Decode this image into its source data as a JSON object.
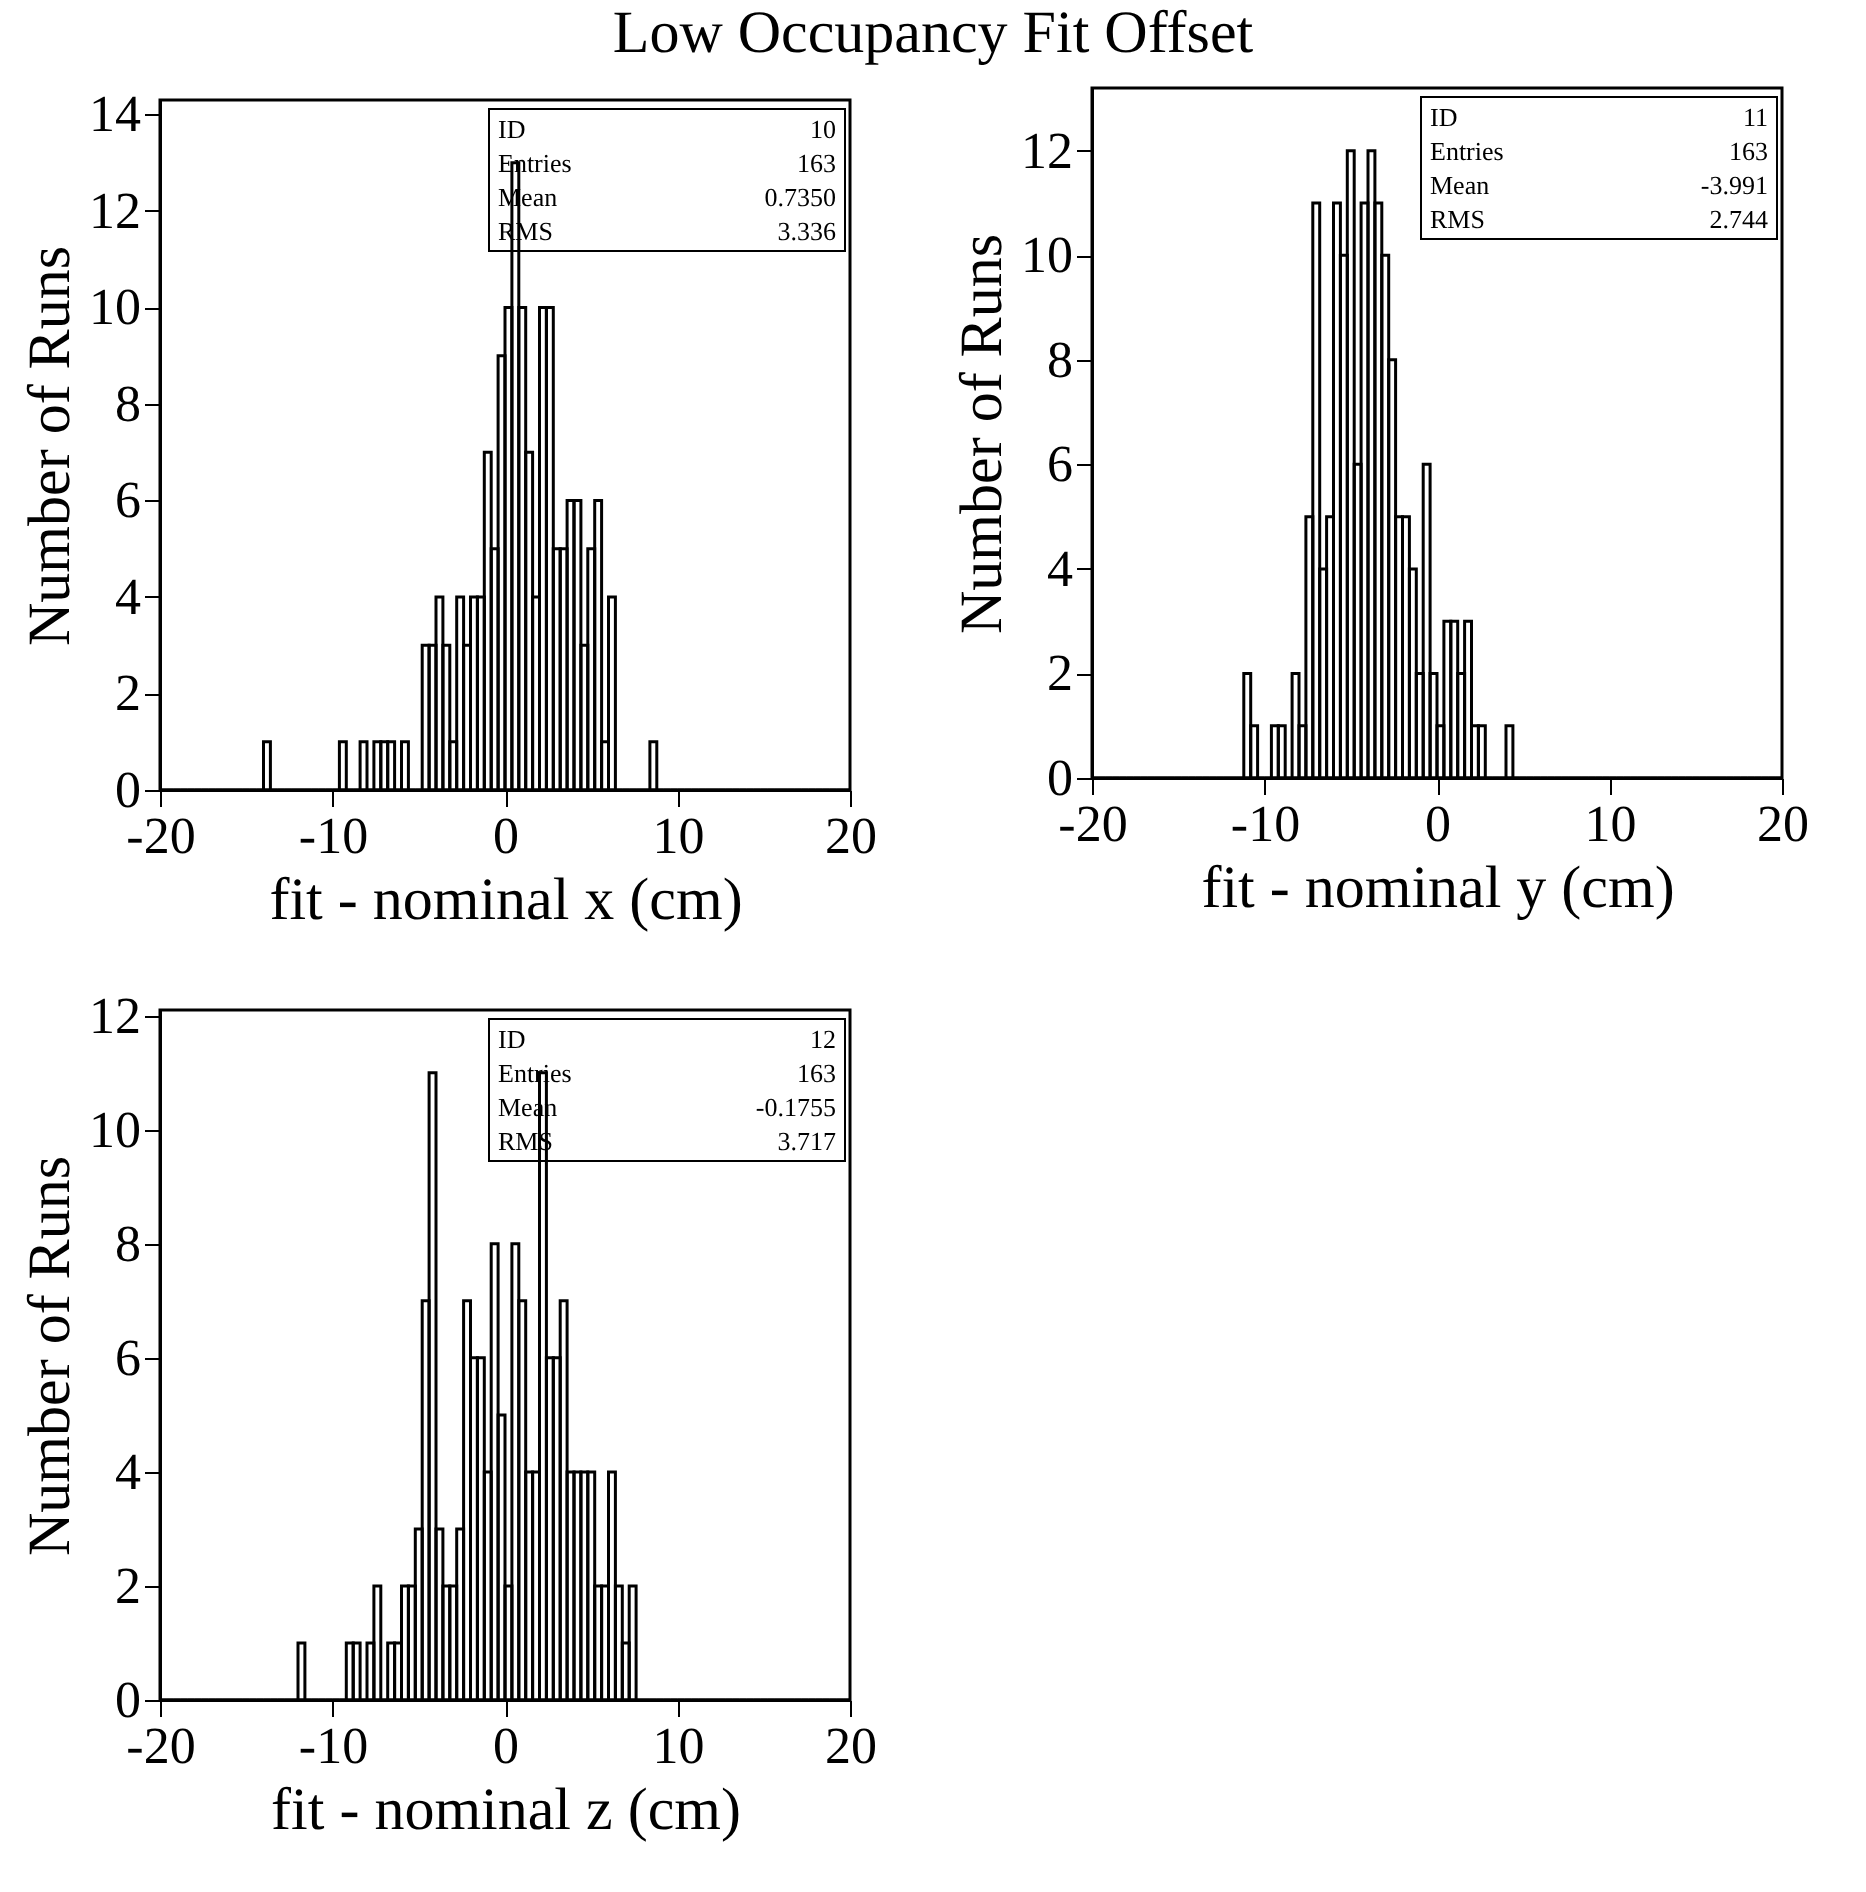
{
  "chart_data": [
    {
      "type": "histogram",
      "title": "Low Occupancy Fit Offset",
      "xlabel": "fit - nominal x (cm)",
      "ylabel": "Number of Runs",
      "color": "#000000",
      "bins": [
        -20,
        -19.6,
        -19.2,
        -18.8,
        -18.4,
        -18,
        -17.6,
        -17.2,
        -16.8,
        -16.4,
        -16,
        -15.6,
        -15.2,
        -14.8,
        -14.4,
        -14,
        -13.6,
        -13.2,
        -12.8,
        -12.4,
        -12,
        -11.6,
        -11.2,
        -10.8,
        -10.4,
        -10,
        -9.6,
        -9.2,
        -8.8,
        -8.4,
        -8,
        -7.6,
        -7.2,
        -6.8,
        -6.4,
        -6,
        -5.6,
        -5.2,
        -4.8,
        -4.4,
        -4,
        -3.6,
        -3.2,
        -2.8,
        -2.4,
        -2,
        -1.6,
        -1.2,
        -0.8,
        -0.4,
        0,
        0.4,
        0.8,
        1.2,
        1.6,
        2,
        2.4,
        2.8,
        3.2,
        3.6,
        4,
        4.4,
        4.8,
        5.2,
        5.6,
        6,
        6.4,
        6.8,
        7.2,
        7.6,
        8,
        8.4,
        8.8,
        9.2,
        9.6,
        10,
        10.4,
        10.8,
        11.2,
        11.6,
        12,
        12.4,
        12.8,
        13.2,
        13.6,
        14,
        14.4,
        14.8,
        15.2,
        15.6,
        16,
        16.4,
        16.8,
        17.2,
        17.6,
        18,
        18.4,
        18.8,
        19.2,
        19.6,
        20
      ],
      "values": [
        0,
        0,
        0,
        0,
        0,
        0,
        0,
        0,
        0,
        0,
        0,
        0,
        0,
        0,
        0,
        1,
        0,
        0,
        0,
        0,
        0,
        0,
        0,
        0,
        0,
        0,
        1,
        0,
        0,
        1,
        0,
        1,
        1,
        1,
        0,
        1,
        0,
        0,
        3,
        3,
        4,
        3,
        1,
        4,
        3,
        4,
        4,
        7,
        5,
        9,
        10,
        13,
        10,
        7,
        4,
        10,
        10,
        5,
        5,
        6,
        6,
        3,
        5,
        6,
        1,
        4,
        0,
        0,
        0,
        0,
        0,
        1,
        0,
        0,
        0,
        0,
        0,
        0,
        0,
        0,
        0,
        0,
        0,
        0,
        0,
        0,
        0,
        0,
        0,
        0,
        0,
        0,
        0,
        0,
        0,
        0,
        0,
        0,
        0,
        0
      ],
      "xlim": [
        -20,
        20
      ],
      "xticks": [
        -20,
        -10,
        0,
        10,
        20
      ],
      "ylim": [
        0,
        14.3
      ],
      "yticks": [
        0,
        2,
        4,
        6,
        8,
        10,
        12,
        14
      ],
      "annotations": [
        "ID 10",
        "Entries 163",
        "Mean 0.7350",
        "RMS 3.336"
      ]
    },
    {
      "type": "histogram",
      "xlabel": "fit - nominal y (cm)",
      "ylabel": "Number of Runs",
      "color": "#000000",
      "bins": [
        -20,
        -19.6,
        -19.2,
        -18.8,
        -18.4,
        -18,
        -17.6,
        -17.2,
        -16.8,
        -16.4,
        -16,
        -15.6,
        -15.2,
        -14.8,
        -14.4,
        -14,
        -13.6,
        -13.2,
        -12.8,
        -12.4,
        -12,
        -11.6,
        -11.2,
        -10.8,
        -10.4,
        -10,
        -9.6,
        -9.2,
        -8.8,
        -8.4,
        -8,
        -7.6,
        -7.2,
        -6.8,
        -6.4,
        -6,
        -5.6,
        -5.2,
        -4.8,
        -4.4,
        -4,
        -3.6,
        -3.2,
        -2.8,
        -2.4,
        -2,
        -1.6,
        -1.2,
        -0.8,
        -0.4,
        0,
        0.4,
        0.8,
        1.2,
        1.6,
        2,
        2.4,
        2.8,
        3.2,
        3.6,
        4,
        4.4,
        4.8,
        5.2,
        5.6,
        6,
        6.4,
        6.8,
        7.2,
        7.6,
        8,
        8.4,
        8.8,
        9.2,
        9.6,
        10,
        10.4,
        10.8,
        11.2,
        11.6,
        12,
        12.4,
        12.8,
        13.2,
        13.6,
        14,
        14.4,
        14.8,
        15.2,
        15.6,
        16,
        16.4,
        16.8,
        17.2,
        17.6,
        18,
        18.4,
        18.8,
        19.2,
        19.6,
        20
      ],
      "values": [
        0,
        0,
        0,
        0,
        0,
        0,
        0,
        0,
        0,
        0,
        0,
        0,
        0,
        0,
        0,
        0,
        0,
        0,
        0,
        0,
        0,
        0,
        2,
        1,
        0,
        0,
        1,
        1,
        0,
        2,
        1,
        5,
        11,
        4,
        5,
        11,
        10,
        12,
        6,
        11,
        12,
        11,
        10,
        8,
        5,
        5,
        4,
        2,
        6,
        2,
        1,
        3,
        3,
        2,
        3,
        1,
        1,
        0,
        0,
        0,
        1,
        0,
        0,
        0,
        0,
        0,
        0,
        0,
        0,
        0,
        0,
        0,
        0,
        0,
        0,
        0,
        0,
        0,
        0,
        0,
        0,
        0,
        0,
        0,
        0,
        0,
        0,
        0,
        0,
        0,
        0,
        0,
        0,
        0,
        0,
        0,
        0,
        0,
        0,
        0
      ],
      "xlim": [
        -20,
        20
      ],
      "xticks": [
        -20,
        -10,
        0,
        10,
        20
      ],
      "ylim": [
        0,
        13.2
      ],
      "yticks": [
        0,
        2,
        4,
        6,
        8,
        10,
        12
      ],
      "annotations": [
        "ID 11",
        "Entries 163",
        "Mean -3.991",
        "RMS 2.744"
      ]
    },
    {
      "type": "histogram",
      "xlabel": "fit - nominal z (cm)",
      "ylabel": "Number of Runs",
      "color": "#000000",
      "bins": [
        -20,
        -19.6,
        -19.2,
        -18.8,
        -18.4,
        -18,
        -17.6,
        -17.2,
        -16.8,
        -16.4,
        -16,
        -15.6,
        -15.2,
        -14.8,
        -14.4,
        -14,
        -13.6,
        -13.2,
        -12.8,
        -12.4,
        -12,
        -11.6,
        -11.2,
        -10.8,
        -10.4,
        -10,
        -9.6,
        -9.2,
        -8.8,
        -8.4,
        -8,
        -7.6,
        -7.2,
        -6.8,
        -6.4,
        -6,
        -5.6,
        -5.2,
        -4.8,
        -4.4,
        -4,
        -3.6,
        -3.2,
        -2.8,
        -2.4,
        -2,
        -1.6,
        -1.2,
        -0.8,
        -0.4,
        0,
        0.4,
        0.8,
        1.2,
        1.6,
        2,
        2.4,
        2.8,
        3.2,
        3.6,
        4,
        4.4,
        4.8,
        5.2,
        5.6,
        6,
        6.4,
        6.8,
        7.2,
        7.6,
        8,
        8.4,
        8.8,
        9.2,
        9.6,
        10,
        10.4,
        10.8,
        11.2,
        11.6,
        12,
        12.4,
        12.8,
        13.2,
        13.6,
        14,
        14.4,
        14.8,
        15.2,
        15.6,
        16,
        16.4,
        16.8,
        17.2,
        17.6,
        18,
        18.4,
        18.8,
        19.2,
        19.6,
        20
      ],
      "values": [
        0,
        0,
        0,
        0,
        0,
        0,
        0,
        0,
        0,
        0,
        0,
        0,
        0,
        0,
        0,
        0,
        0,
        0,
        0,
        0,
        1,
        0,
        0,
        0,
        0,
        0,
        0,
        1,
        1,
        0,
        1,
        2,
        0,
        1,
        1,
        2,
        2,
        3,
        7,
        11,
        3,
        2,
        2,
        3,
        7,
        6,
        6,
        4,
        8,
        5,
        2,
        8,
        7,
        4,
        4,
        11,
        6,
        6,
        7,
        4,
        4,
        4,
        4,
        2,
        2,
        4,
        2,
        1,
        2,
        0,
        0,
        0,
        0,
        0,
        0,
        0,
        0,
        0,
        0,
        0,
        0,
        0,
        0,
        0,
        0,
        0,
        0,
        0,
        0,
        0,
        0,
        0,
        0,
        0,
        0,
        0,
        0,
        0,
        0,
        0
      ],
      "xlim": [
        -20,
        20
      ],
      "xticks": [
        -20,
        -10,
        0,
        10,
        20
      ],
      "ylim": [
        0,
        12.1
      ],
      "yticks": [
        0,
        2,
        4,
        6,
        8,
        10,
        12
      ],
      "annotations": [
        "ID 12",
        "Entries 163",
        "Mean -0.1755",
        "RMS 3.717"
      ]
    }
  ]
}
